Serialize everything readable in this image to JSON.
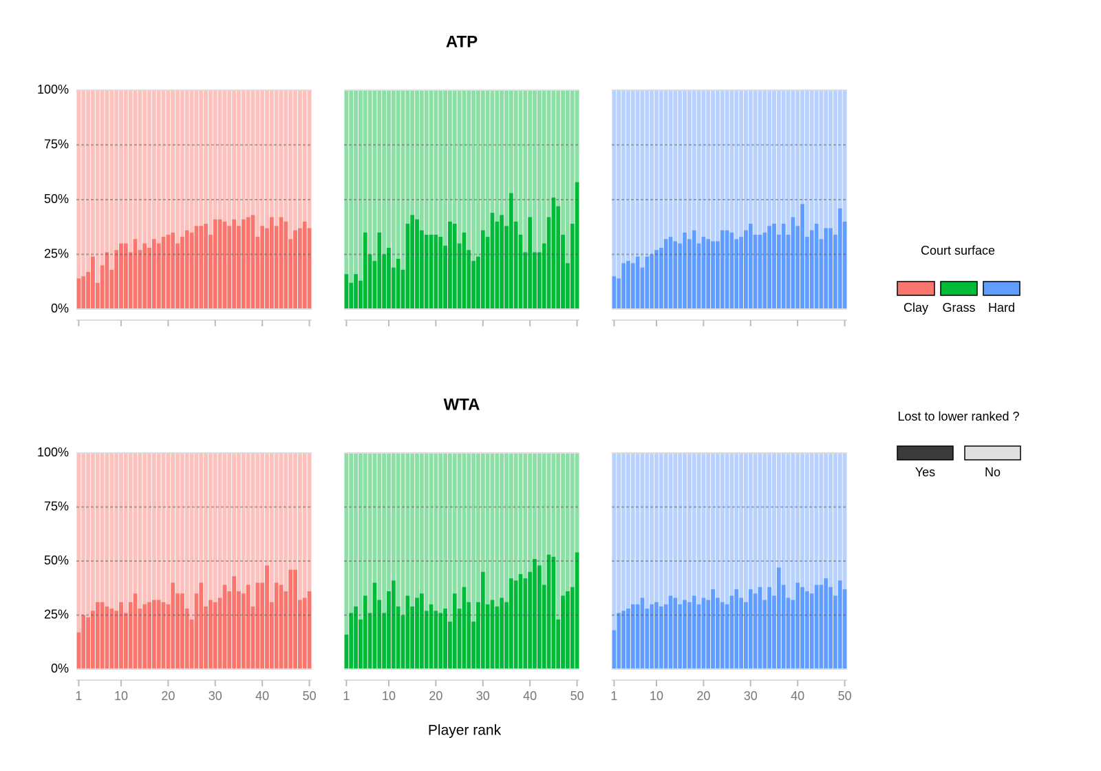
{
  "chart_data": {
    "type": "bar",
    "xlabel": "Player rank",
    "rows": [
      "ATP",
      "WTA"
    ],
    "x": [
      1,
      2,
      3,
      4,
      5,
      6,
      7,
      8,
      9,
      10,
      11,
      12,
      13,
      14,
      15,
      16,
      17,
      18,
      19,
      20,
      21,
      22,
      23,
      24,
      25,
      26,
      27,
      28,
      29,
      30,
      31,
      32,
      33,
      34,
      35,
      36,
      37,
      38,
      39,
      40,
      41,
      42,
      43,
      44,
      45,
      46,
      47,
      48,
      49,
      50
    ],
    "xlim": [
      0.5,
      50.5
    ],
    "xticks": [
      1,
      10,
      20,
      30,
      40,
      50
    ],
    "ylim": [
      0,
      100
    ],
    "yticks": [
      {
        "value": 0,
        "label": "0%"
      },
      {
        "value": 25,
        "label": "25%"
      },
      {
        "value": 50,
        "label": "50%"
      },
      {
        "value": 75,
        "label": "75%"
      },
      {
        "value": 100,
        "label": "100%"
      }
    ],
    "grid": true,
    "legend_title": "Court surface",
    "series": [
      {
        "name": "Clay",
        "color": "#f8766d",
        "values": [
          [
            14,
            15,
            17,
            24,
            12,
            20,
            26,
            18,
            27,
            30,
            30,
            26,
            32,
            27,
            30,
            28,
            32,
            30,
            33,
            34,
            35,
            30,
            33,
            36,
            35,
            38,
            38,
            39,
            34,
            41,
            41,
            40,
            38,
            41,
            38,
            41,
            42,
            43,
            33,
            38,
            37,
            42,
            38,
            42,
            40,
            32,
            36,
            37,
            40,
            37
          ],
          [
            17,
            25,
            24,
            27,
            31,
            31,
            29,
            28,
            27,
            31,
            26,
            31,
            35,
            28,
            30,
            31,
            32,
            32,
            31,
            30,
            40,
            35,
            35,
            28,
            23,
            35,
            40,
            29,
            32,
            31,
            33,
            39,
            36,
            43,
            36,
            35,
            39,
            29,
            40,
            40,
            48,
            31,
            40,
            39,
            36,
            46,
            46,
            32,
            33,
            36
          ]
        ]
      },
      {
        "name": "Grass",
        "color": "#00ba38",
        "values": [
          [
            16,
            12,
            16,
            13,
            35,
            25,
            22,
            35,
            25,
            28,
            19,
            23,
            18,
            39,
            43,
            41,
            36,
            34,
            34,
            34,
            33,
            29,
            40,
            39,
            30,
            35,
            27,
            22,
            24,
            36,
            33,
            44,
            40,
            43,
            38,
            53,
            40,
            34,
            26,
            42,
            26,
            26,
            30,
            42,
            51,
            47,
            34,
            21,
            39,
            58
          ],
          [
            16,
            26,
            29,
            23,
            34,
            26,
            40,
            32,
            26,
            36,
            41,
            29,
            25,
            34,
            29,
            33,
            35,
            27,
            30,
            27,
            26,
            28,
            22,
            35,
            28,
            38,
            31,
            22,
            31,
            45,
            30,
            32,
            29,
            33,
            31,
            42,
            41,
            44,
            42,
            45,
            51,
            48,
            39,
            53,
            52,
            23,
            34,
            36,
            38,
            54
          ]
        ]
      },
      {
        "name": "Hard",
        "color": "#619cff",
        "values": [
          [
            15,
            14,
            21,
            22,
            21,
            24,
            19,
            24,
            25,
            27,
            28,
            32,
            33,
            31,
            30,
            35,
            32,
            36,
            30,
            33,
            32,
            31,
            31,
            36,
            36,
            35,
            32,
            33,
            36,
            39,
            34,
            34,
            35,
            38,
            39,
            34,
            39,
            34,
            42,
            38,
            48,
            33,
            36,
            39,
            32,
            37,
            37,
            34,
            46,
            40
          ],
          [
            18,
            26,
            27,
            28,
            30,
            30,
            33,
            28,
            30,
            31,
            29,
            30,
            34,
            33,
            30,
            32,
            31,
            34,
            30,
            33,
            32,
            37,
            33,
            31,
            30,
            34,
            37,
            33,
            31,
            37,
            35,
            38,
            32,
            38,
            34,
            47,
            39,
            33,
            32,
            40,
            38,
            36,
            35,
            39,
            39,
            42,
            38,
            34,
            41,
            37
          ]
        ]
      }
    ],
    "fill_legend_title": "Lost to lower ranked ?",
    "fill_legend": [
      {
        "name": "Yes",
        "color": "#3a3a3a"
      },
      {
        "name": "No",
        "color": "#e0e0e0"
      }
    ]
  }
}
